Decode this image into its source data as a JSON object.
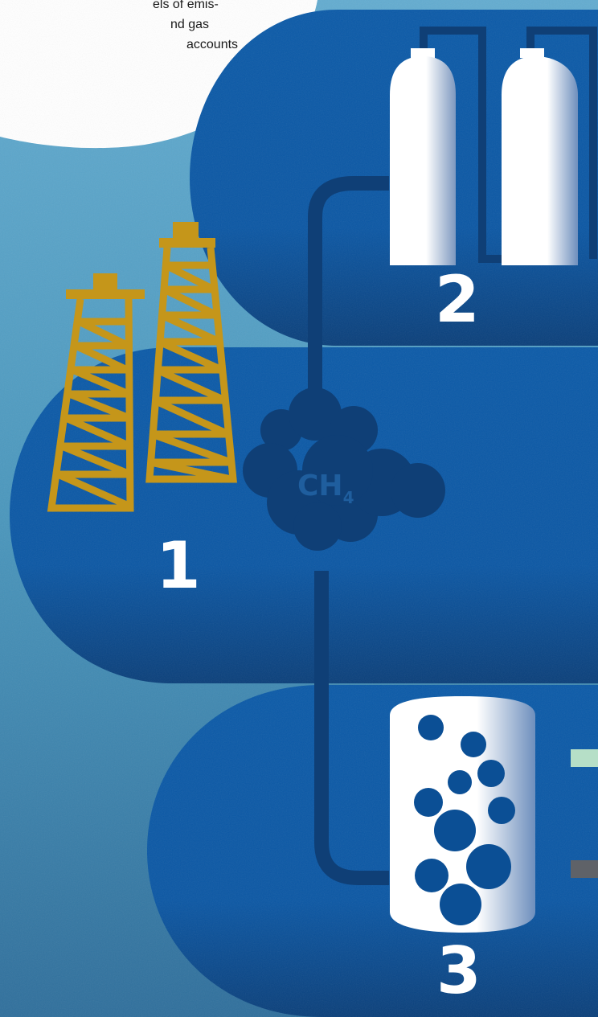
{
  "callout": {
    "line1": "els of emis-",
    "line2": "nd gas",
    "line3": " accounts"
  },
  "steps": [
    {
      "label": "1"
    },
    {
      "label": "2"
    },
    {
      "label": "3"
    }
  ],
  "cloud": {
    "formula": "CH",
    "subscript": "4"
  },
  "colors": {
    "background_light": "#5aa6c6",
    "panel_blue": "#0b57a6",
    "pipe_dark": "#0f3f76",
    "derrick_gold": "#c5961a",
    "legend_green": "#b6dfc7",
    "legend_grey": "#5f6268"
  }
}
